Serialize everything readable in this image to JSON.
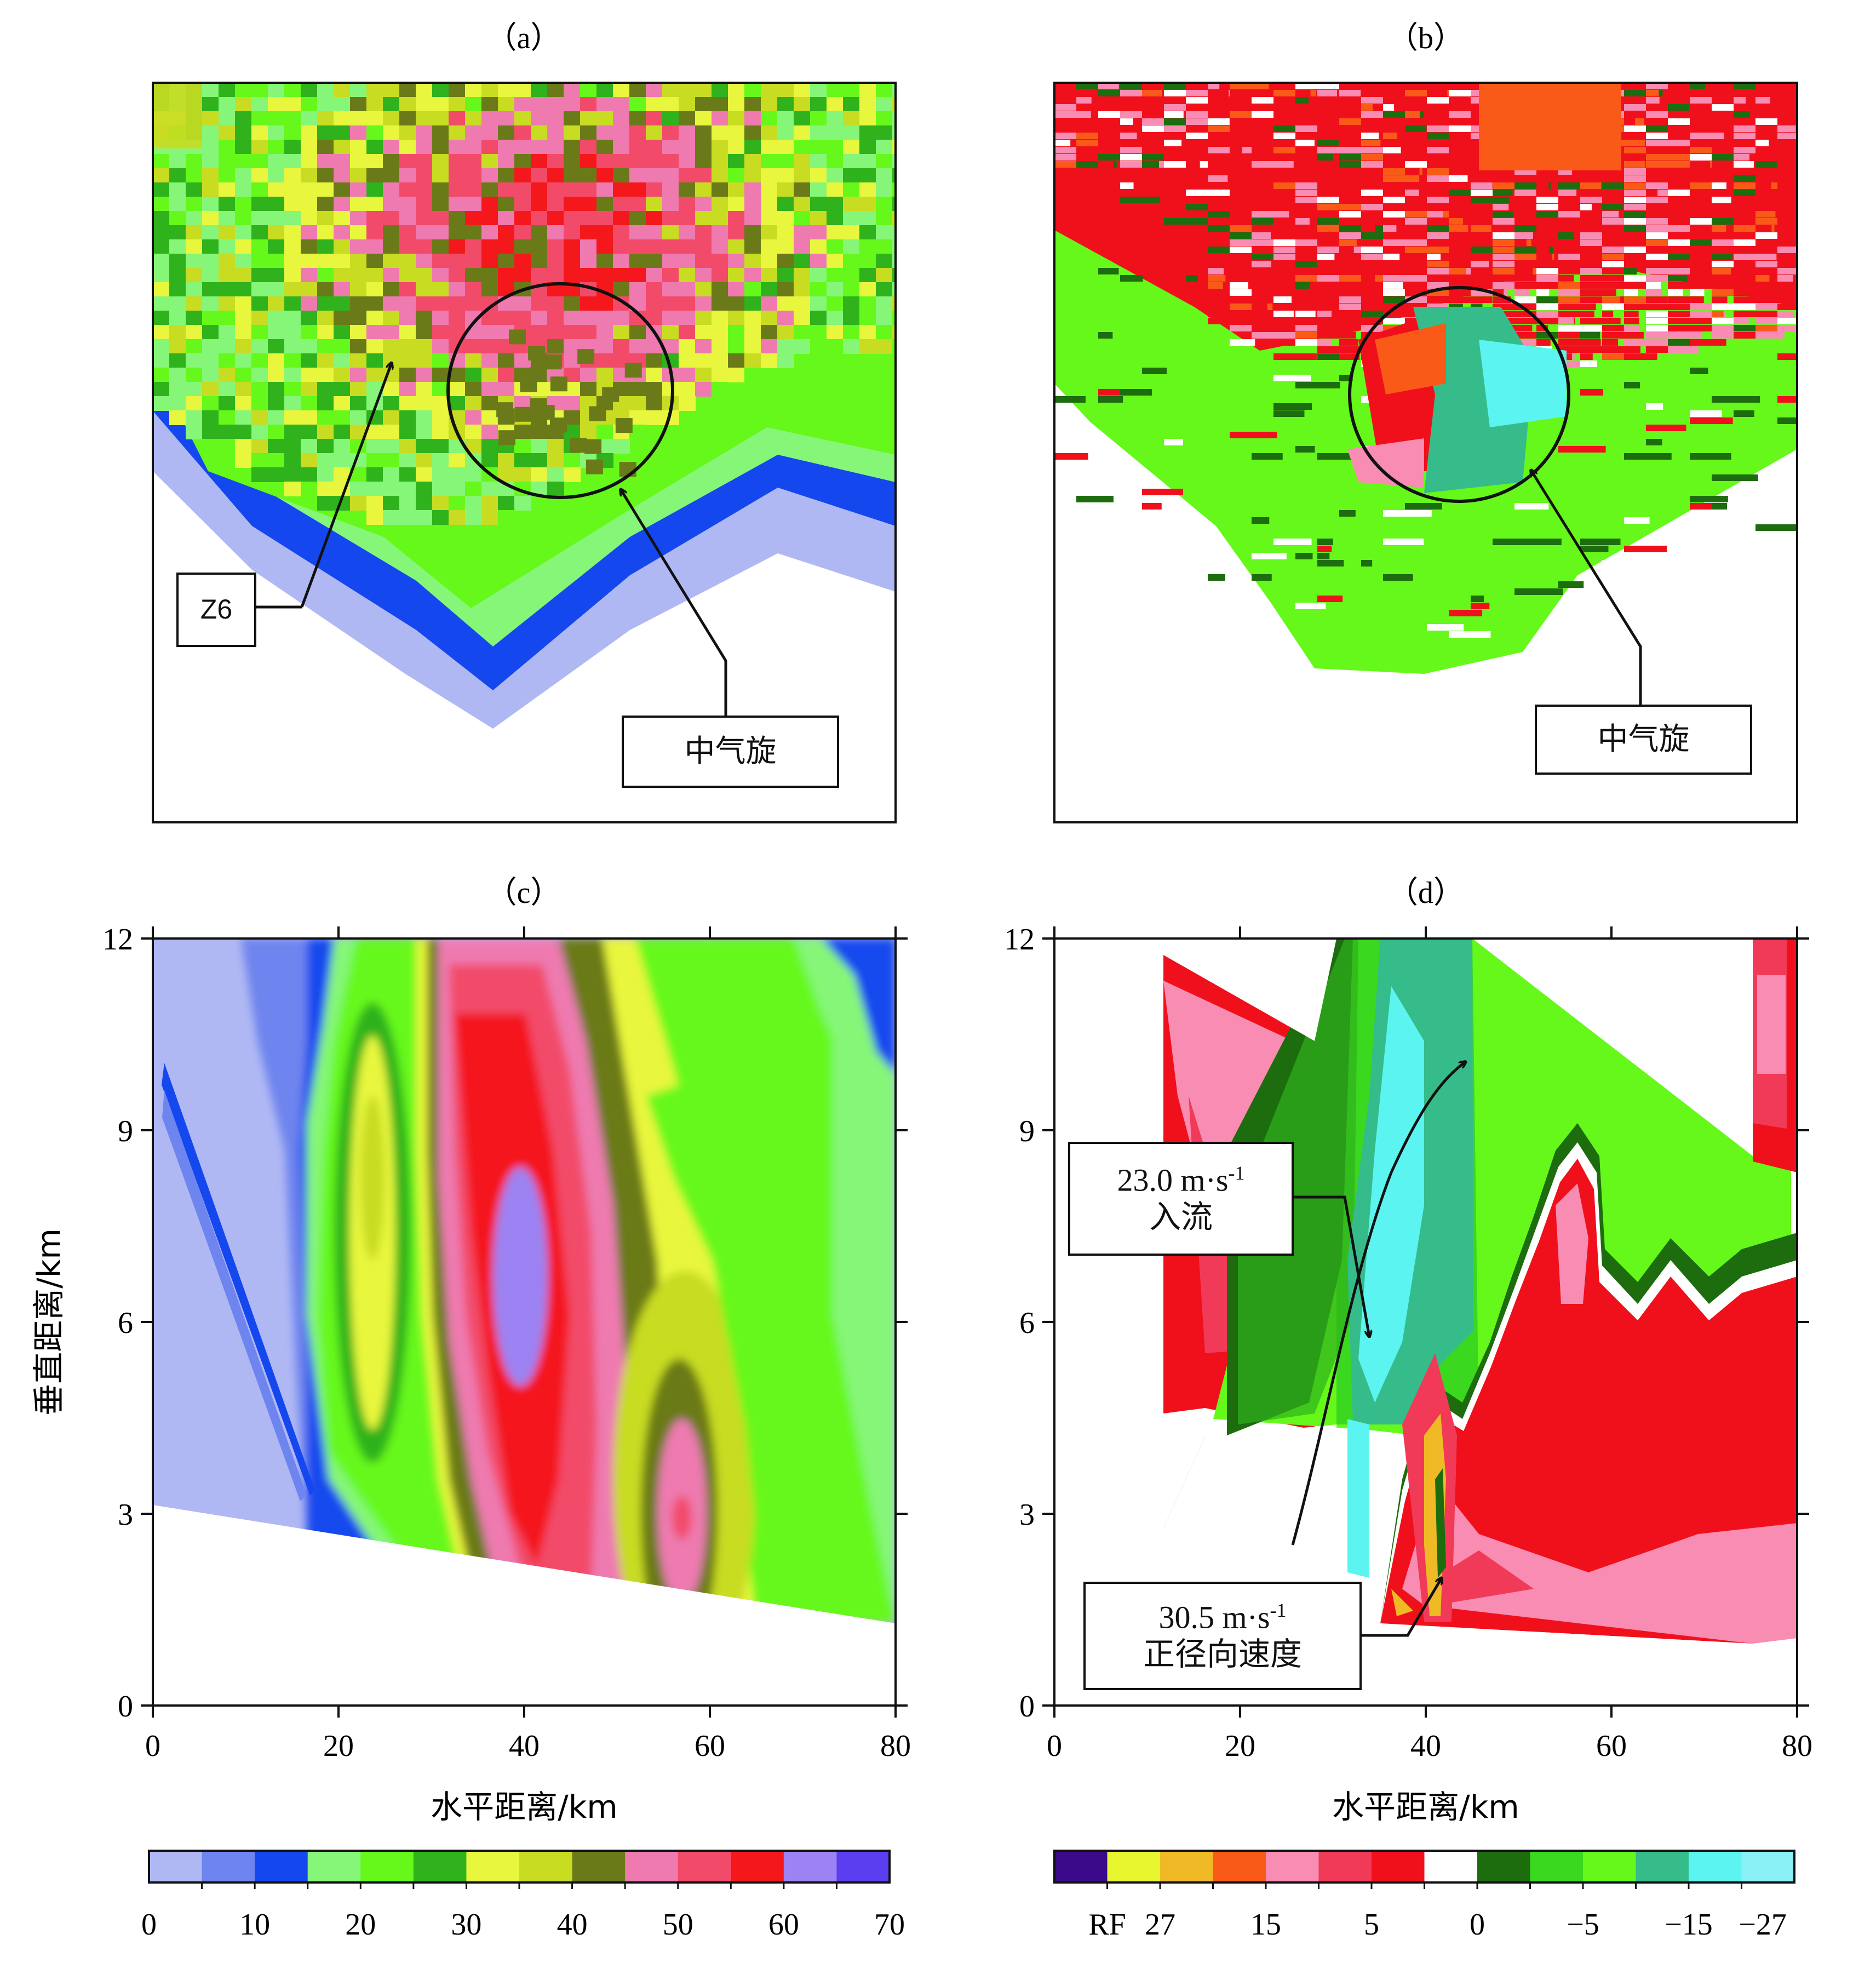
{
  "panels": {
    "a": {
      "label": "（a）",
      "annotations": {
        "z6": "Z6",
        "meso": "中气旋"
      }
    },
    "b": {
      "label": "（b）",
      "annotations": {
        "meso": "中气旋"
      }
    },
    "c": {
      "label": "（c）"
    },
    "d": {
      "label": "（d）",
      "annotations": {
        "inflow_value": "23.0 m·s",
        "inflow_exp": "-1",
        "inflow_text": "入流",
        "radial_value": "30.5 m·s",
        "radial_exp": "-1",
        "radial_text": "正径向速度"
      }
    }
  },
  "axes": {
    "xlabel": "水平距离/km",
    "ylabel": "垂直距离/km",
    "xticks": [
      "0",
      "20",
      "40",
      "60",
      "80"
    ],
    "yticks": [
      "0",
      "3",
      "6",
      "9",
      "12"
    ],
    "xlim": [
      0,
      80
    ],
    "ylim": [
      0,
      12
    ]
  },
  "colorbar_reflectivity": {
    "colors": [
      "#b0b8f4",
      "#6e84ee",
      "#1448ee",
      "#86f678",
      "#66f81a",
      "#2fb21c",
      "#e8f63e",
      "#c8dc22",
      "#6b7a18",
      "#ee7ab0",
      "#f24b6a",
      "#f4181c",
      "#9c82f2",
      "#5a3ef0"
    ],
    "labels": [
      "0",
      "10",
      "20",
      "30",
      "40",
      "50",
      "60",
      "70"
    ]
  },
  "colorbar_velocity": {
    "colors": [
      "#3a0a8a",
      "#e8f630",
      "#f0ba26",
      "#fa5a18",
      "#f88cb2",
      "#f03a58",
      "#f0101c",
      "#ffffff",
      "#1d6c0e",
      "#3ad81e",
      "#66f81a",
      "#36bc8a",
      "#5cf4f0",
      "#8af2f6"
    ],
    "labels": [
      "RF",
      "27",
      "15",
      "5",
      "0",
      "−5",
      "−15",
      "−27"
    ]
  },
  "chart_data": [
    {
      "type": "heatmap",
      "title": "（a）",
      "quantity": "radar reflectivity",
      "vmin": 0,
      "vmax": 70,
      "step": 5,
      "annotations": [
        "Z6",
        "中气旋"
      ]
    },
    {
      "type": "heatmap",
      "title": "（b）",
      "quantity": "radial velocity",
      "colorbar_labels": [
        "RF",
        "27",
        "15",
        "5",
        "0",
        "−5",
        "−15",
        "−27"
      ],
      "annotations": [
        "中气旋"
      ]
    },
    {
      "type": "heatmap",
      "title": "（c）",
      "quantity": "reflectivity vertical cross-section",
      "xlabel": "水平距离/km",
      "ylabel": "垂直距离/km",
      "xlim": [
        0,
        80
      ],
      "ylim": [
        0,
        12
      ],
      "core_max_value": 60,
      "core_location_km": {
        "x": 38,
        "z": 6.5
      }
    },
    {
      "type": "heatmap",
      "title": "（d）",
      "quantity": "radial velocity vertical cross-section",
      "xlabel": "水平距离/km",
      "xlim": [
        0,
        80
      ],
      "ylim": [
        0,
        12
      ],
      "annotations": [
        {
          "text": "23.0 m·s-1 入流",
          "x": 34,
          "z": 6
        },
        {
          "text": "30.5 m·s-1 正径向速度",
          "x": 42,
          "z": 2
        }
      ]
    }
  ]
}
